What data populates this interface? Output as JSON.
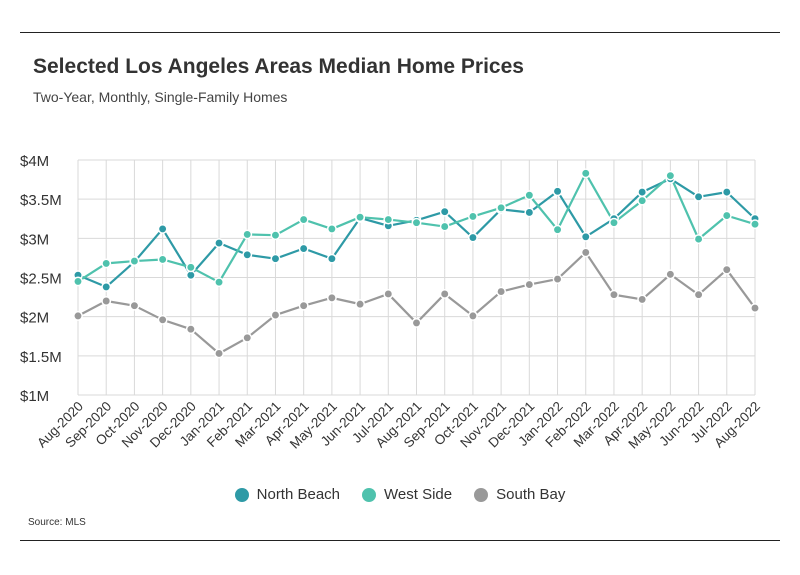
{
  "header": {
    "title": "Selected Los Angeles Areas Median Home Prices",
    "subtitle": "Two-Year, Monthly, Single-Family Homes"
  },
  "footer": {
    "source": "Source: MLS"
  },
  "chart_data": {
    "type": "line",
    "title": "Selected Los Angeles Areas Median Home Prices",
    "subtitle": "Two-Year, Monthly, Single-Family Homes",
    "xlabel": "",
    "ylabel": "",
    "categories": [
      "Aug-2020",
      "Sep-2020",
      "Oct-2020",
      "Nov-2020",
      "Dec-2020",
      "Jan-2021",
      "Feb-2021",
      "Mar-2021",
      "Apr-2021",
      "May-2021",
      "Jun-2021",
      "Jul-2021",
      "Aug-2021",
      "Sep-2021",
      "Oct-2021",
      "Nov-2021",
      "Dec-2021",
      "Jan-2022",
      "Feb-2022",
      "Mar-2022",
      "Apr-2022",
      "May-2022",
      "Jun-2022",
      "Jul-2022",
      "Aug-2022"
    ],
    "ylim": [
      1,
      4
    ],
    "y_unit": "millions of dollars",
    "yticks": [
      1,
      1.5,
      2,
      2.5,
      3,
      3.5,
      4
    ],
    "ytick_labels": [
      "$1M",
      "$1.5M",
      "$2M",
      "$2.5M",
      "$3M",
      "$3.5M",
      "$4M"
    ],
    "grid": true,
    "legend_position": "bottom",
    "series": [
      {
        "name": "North Beach",
        "color": "#2e9aa6",
        "values": [
          2.53,
          2.38,
          2.7,
          3.12,
          2.53,
          2.94,
          2.79,
          2.74,
          2.87,
          2.74,
          3.26,
          3.16,
          3.23,
          3.34,
          3.01,
          3.37,
          3.33,
          3.6,
          3.02,
          3.25,
          3.59,
          3.76,
          3.53,
          3.59,
          3.25
        ]
      },
      {
        "name": "West Side",
        "color": "#4fc2ad",
        "values": [
          2.45,
          2.68,
          2.71,
          2.73,
          2.63,
          2.44,
          3.05,
          3.04,
          3.24,
          3.12,
          3.27,
          3.24,
          3.2,
          3.15,
          3.28,
          3.39,
          3.55,
          3.11,
          3.83,
          3.2,
          3.48,
          3.8,
          2.99,
          3.29,
          3.18
        ]
      },
      {
        "name": "South Bay",
        "color": "#999999",
        "values": [
          2.01,
          2.2,
          2.14,
          1.96,
          1.84,
          1.53,
          1.73,
          2.02,
          2.14,
          2.24,
          2.16,
          2.29,
          1.92,
          2.29,
          2.01,
          2.32,
          2.41,
          2.48,
          2.82,
          2.28,
          2.22,
          2.54,
          2.28,
          2.6,
          2.11
        ]
      }
    ]
  }
}
